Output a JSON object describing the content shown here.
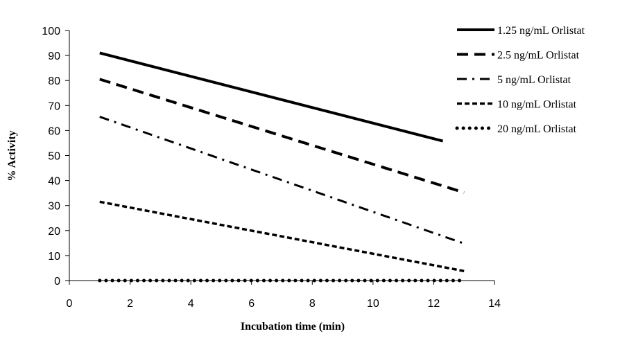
{
  "chart_data": {
    "type": "line",
    "title": "",
    "xlabel": "Incubation time (min)",
    "ylabel": "% Activity",
    "xlim": [
      0,
      14
    ],
    "ylim": [
      0,
      100
    ],
    "xticks": [
      0,
      2,
      4,
      6,
      8,
      10,
      12,
      14
    ],
    "yticks": [
      0,
      10,
      20,
      30,
      40,
      50,
      60,
      70,
      80,
      90,
      100
    ],
    "grid": false,
    "legend_position": "right",
    "series": [
      {
        "name": "1.25 ng/mL Orlistat",
        "dash": "solid",
        "x": [
          1,
          12.3
        ],
        "y": [
          91,
          55.8
        ]
      },
      {
        "name": "2.5 ng/mL Orlistat",
        "dash": "dash",
        "x": [
          1,
          13
        ],
        "y": [
          80.5,
          35.2
        ]
      },
      {
        "name": "5 ng/mL Orlistat",
        "dash": "dashdot",
        "x": [
          1,
          13
        ],
        "y": [
          65.5,
          14.8
        ]
      },
      {
        "name": "10 ng/mL Orlistat",
        "dash": "shortdash",
        "x": [
          1,
          13
        ],
        "y": [
          31.5,
          3.8
        ]
      },
      {
        "name": "20 ng/mL Orlistat",
        "dash": "dot",
        "x": [
          1,
          13
        ],
        "y": [
          0,
          0
        ]
      }
    ]
  }
}
